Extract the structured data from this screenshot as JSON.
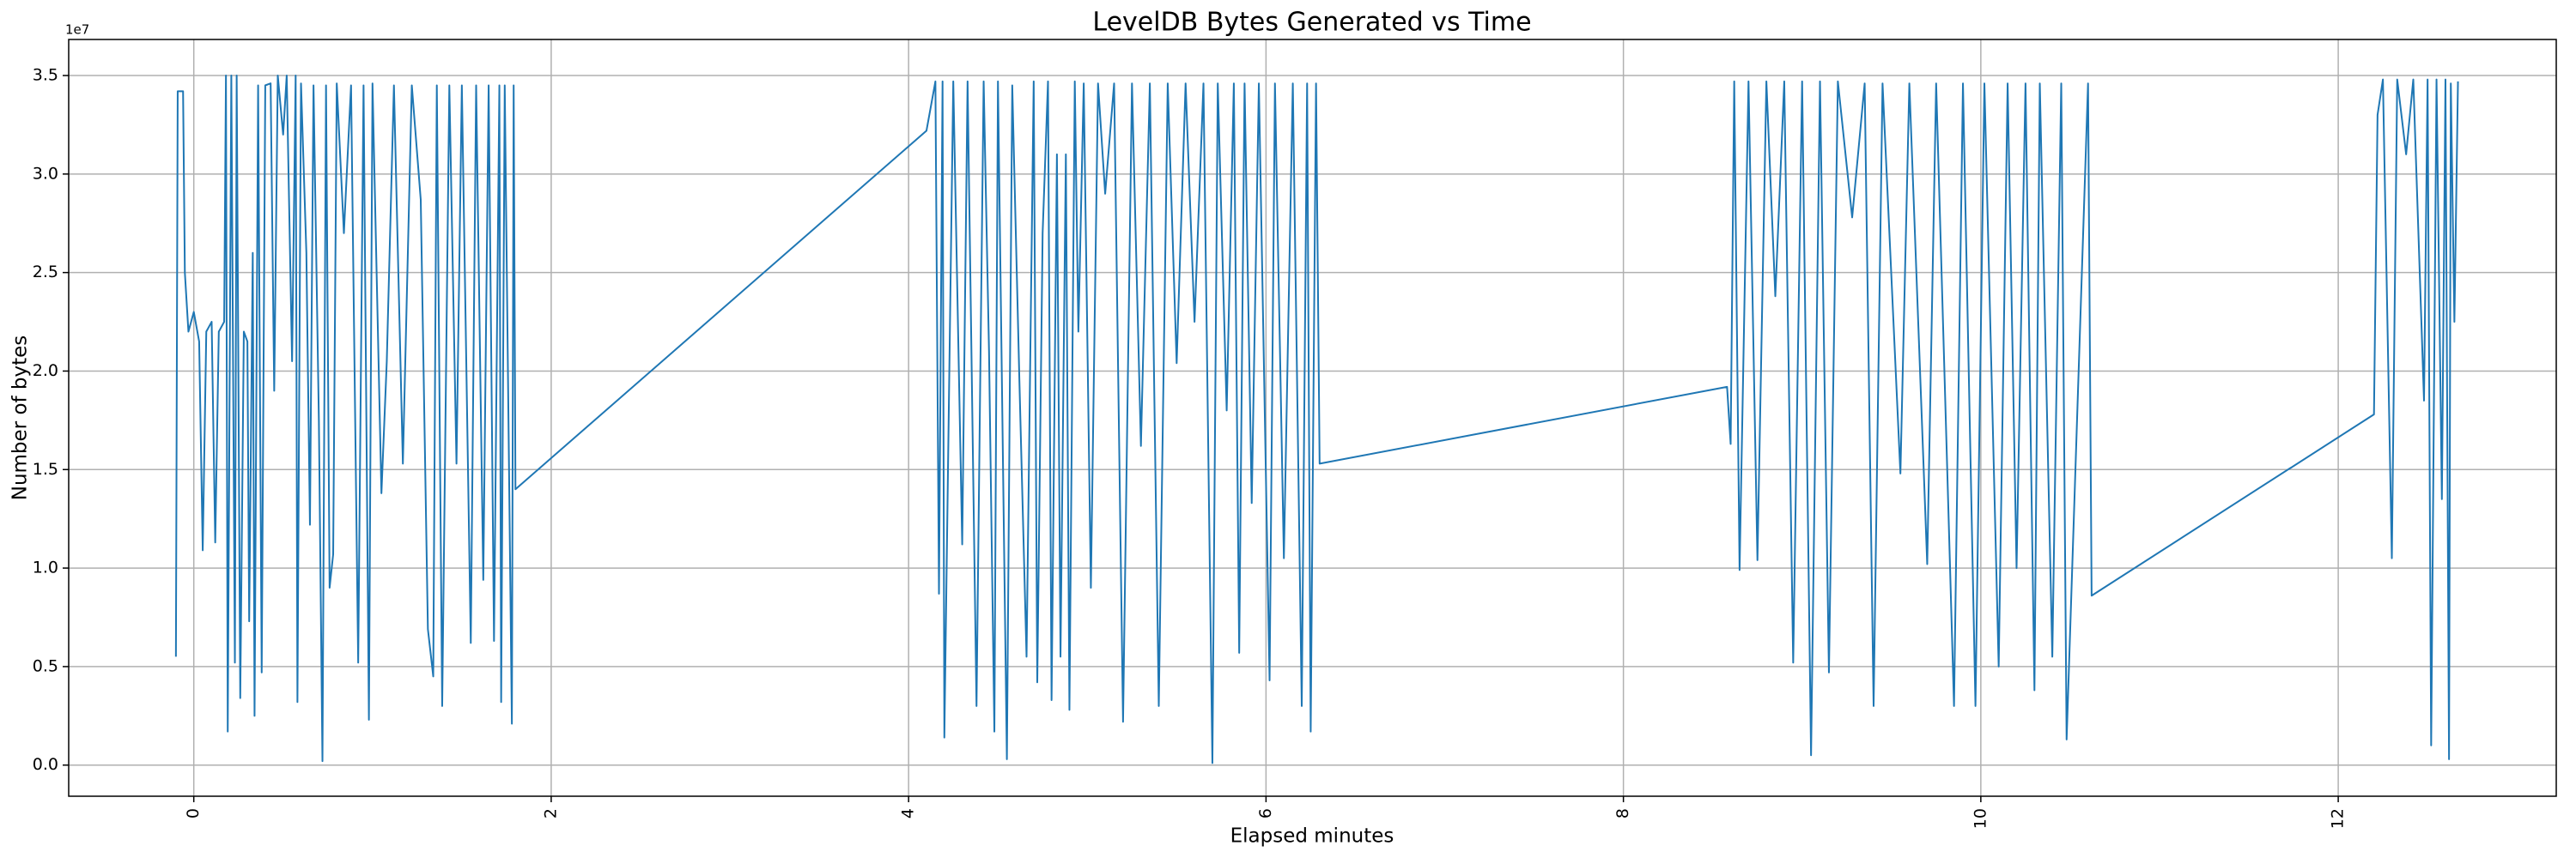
{
  "chart_data": {
    "type": "line",
    "title": "LevelDB Bytes Generated vs Time",
    "x_label": "Elapsed minutes",
    "y_label": "Number of bytes",
    "y_offset_label": "1e7",
    "color": "#1f77b4",
    "grid": true,
    "xlim": [
      -0.7,
      13.22
    ],
    "ylim": [
      -0.158,
      3.683
    ],
    "xticks": [
      0,
      2,
      4,
      6,
      8,
      10,
      12
    ],
    "yticks": [
      {
        "value": 0,
        "label": "0.0"
      },
      0.5,
      {
        "value": 1,
        "label": "1.0"
      },
      1.5,
      {
        "value": 2,
        "label": "2.0"
      },
      2.5,
      {
        "value": 3,
        "label": "3.0"
      },
      3.5
    ],
    "x": [
      -0.1,
      -0.09,
      -0.06,
      -0.05,
      -0.03,
      0,
      0.03,
      0.05,
      0.07,
      0.1,
      0.12,
      0.14,
      0.17,
      0.18,
      0.19,
      0.21,
      0.23,
      0.24,
      0.26,
      0.28,
      0.3,
      0.31,
      0.33,
      0.34,
      0.36,
      0.38,
      0.4,
      0.43,
      0.45,
      0.47,
      0.5,
      0.52,
      0.55,
      0.57,
      0.58,
      0.6,
      0.63,
      0.65,
      0.67,
      0.7,
      0.72,
      0.74,
      0.76,
      0.78,
      0.8,
      0.84,
      0.88,
      0.92,
      0.95,
      0.98,
      1.0,
      1.05,
      1.08,
      1.12,
      1.17,
      1.22,
      1.27,
      1.31,
      1.34,
      1.36,
      1.39,
      1.43,
      1.47,
      1.5,
      1.55,
      1.58,
      1.62,
      1.65,
      1.68,
      1.71,
      1.72,
      1.74,
      1.78,
      1.79,
      1.8,
      4.1,
      4.15,
      4.17,
      4.19,
      4.2,
      4.25,
      4.3,
      4.33,
      4.38,
      4.42,
      4.45,
      4.48,
      4.5,
      4.55,
      4.58,
      4.62,
      4.66,
      4.7,
      4.72,
      4.75,
      4.78,
      4.8,
      4.83,
      4.85,
      4.88,
      4.9,
      4.93,
      4.95,
      4.98,
      5.02,
      5.06,
      5.1,
      5.15,
      5.2,
      5.25,
      5.3,
      5.35,
      5.4,
      5.45,
      5.5,
      5.55,
      5.6,
      5.65,
      5.7,
      5.73,
      5.78,
      5.82,
      5.85,
      5.88,
      5.92,
      5.96,
      6.02,
      6.05,
      6.1,
      6.15,
      6.2,
      6.23,
      6.25,
      6.28,
      6.3,
      8.58,
      8.6,
      8.62,
      8.65,
      8.7,
      8.75,
      8.8,
      8.85,
      8.9,
      8.95,
      9.0,
      9.05,
      9.1,
      9.15,
      9.2,
      9.28,
      9.35,
      9.4,
      9.45,
      9.55,
      9.6,
      9.7,
      9.75,
      9.85,
      9.9,
      9.97,
      10.02,
      10.1,
      10.15,
      10.2,
      10.25,
      10.3,
      10.33,
      10.4,
      10.45,
      10.48,
      10.6,
      10.62,
      12.2,
      12.22,
      12.25,
      12.3,
      12.33,
      12.38,
      12.42,
      12.48,
      12.5,
      12.52,
      12.55,
      12.58,
      12.6,
      12.62,
      12.63,
      12.65,
      12.67
    ],
    "values": [
      0.55,
      3.42,
      3.42,
      2.5,
      2.2,
      2.3,
      2.15,
      1.09,
      2.2,
      2.25,
      1.13,
      2.2,
      2.25,
      3.5,
      0.17,
      3.5,
      0.52,
      3.5,
      0.34,
      2.2,
      2.15,
      0.73,
      2.6,
      0.25,
      3.45,
      0.47,
      3.45,
      3.46,
      1.9,
      3.5,
      3.2,
      3.5,
      2.05,
      3.5,
      0.32,
      3.46,
      2.6,
      1.22,
      3.45,
      1.75,
      0.02,
      3.45,
      0.9,
      1.07,
      3.46,
      2.7,
      3.45,
      0.52,
      3.45,
      0.23,
      3.46,
      1.38,
      2.05,
      3.45,
      1.53,
      3.45,
      2.87,
      0.69,
      0.45,
      3.45,
      0.3,
      3.45,
      1.53,
      3.45,
      0.62,
      3.45,
      0.94,
      3.45,
      0.63,
      3.45,
      0.32,
      3.45,
      0.21,
      3.45,
      1.4,
      3.22,
      3.47,
      0.87,
      3.47,
      0.14,
      3.47,
      1.12,
      3.47,
      0.3,
      3.47,
      2.1,
      0.17,
      3.47,
      0.03,
      3.45,
      1.95,
      0.55,
      3.47,
      0.42,
      2.7,
      3.47,
      0.33,
      3.1,
      0.55,
      3.1,
      0.28,
      3.47,
      2.2,
      3.46,
      0.9,
      3.46,
      2.9,
      3.46,
      0.22,
      3.46,
      1.62,
      3.46,
      0.3,
      3.46,
      2.04,
      3.46,
      2.25,
      3.46,
      0.01,
      3.46,
      1.8,
      3.46,
      0.57,
      3.46,
      1.33,
      3.46,
      0.43,
      3.46,
      1.05,
      3.46,
      0.3,
      3.46,
      0.17,
      3.46,
      1.53,
      1.92,
      1.63,
      3.47,
      0.99,
      3.47,
      1.04,
      3.47,
      2.38,
      3.47,
      0.52,
      3.47,
      0.05,
      3.47,
      0.47,
      3.47,
      2.78,
      3.46,
      0.3,
      3.46,
      1.48,
      3.46,
      1.02,
      3.46,
      0.3,
      3.46,
      0.3,
      3.46,
      0.5,
      3.46,
      1.0,
      3.46,
      0.38,
      3.46,
      0.55,
      3.46,
      0.13,
      3.46,
      0.86,
      1.78,
      3.3,
      3.48,
      1.05,
      3.48,
      3.1,
      3.48,
      1.85,
      3.48,
      0.1,
      3.48,
      1.35,
      3.48,
      0.03,
      3.46,
      2.25,
      3.47
    ]
  }
}
